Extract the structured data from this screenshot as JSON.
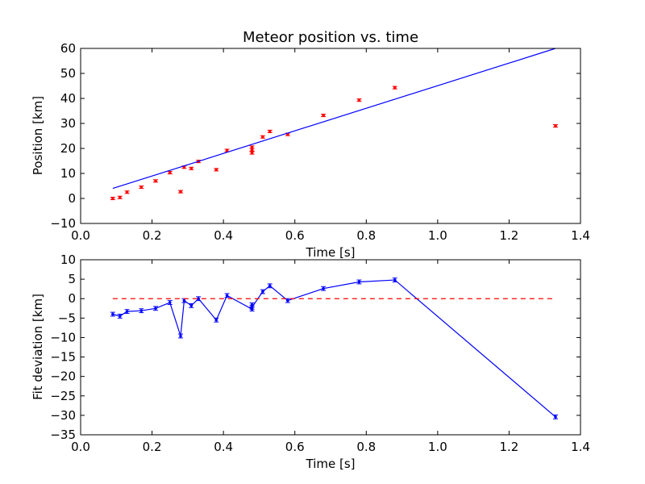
{
  "chart_data": [
    {
      "type": "scatter",
      "title": "Meteor position vs. time",
      "xlabel": "Time [s]",
      "ylabel": "Position [km]",
      "xlim": [
        0.0,
        1.4
      ],
      "ylim": [
        -10,
        60
      ],
      "xticks": [
        0.0,
        0.2,
        0.4,
        0.6,
        0.8,
        1.0,
        1.2,
        1.4
      ],
      "xtick_labels": [
        "0.0",
        "0.2",
        "0.4",
        "0.6",
        "0.8",
        "1.0",
        "1.2",
        "1.4"
      ],
      "yticks": [
        -10,
        0,
        10,
        20,
        30,
        40,
        50,
        60
      ],
      "ytick_labels": [
        "−10",
        "0",
        "10",
        "20",
        "30",
        "40",
        "50",
        "60"
      ],
      "grid": false,
      "series": [
        {
          "kind": "errorbar-points",
          "color": "#ff0000",
          "x": [
            0.09,
            0.11,
            0.13,
            0.17,
            0.21,
            0.25,
            0.28,
            0.29,
            0.31,
            0.33,
            0.38,
            0.41,
            0.48,
            0.48,
            0.48,
            0.51,
            0.53,
            0.58,
            0.68,
            0.78,
            0.88,
            1.33
          ],
          "y": [
            0.0,
            0.4,
            2.5,
            4.5,
            7.0,
            10.3,
            2.7,
            12.5,
            12.0,
            14.8,
            11.5,
            19.2,
            18.2,
            19.5,
            20.5,
            24.6,
            26.8,
            25.6,
            33.2,
            39.3,
            44.3,
            29.0
          ],
          "yerr": 0.5
        },
        {
          "kind": "line",
          "color": "#0000ff",
          "x": [
            0.09,
            1.33
          ],
          "y": [
            4.0,
            60.0
          ]
        }
      ]
    },
    {
      "type": "line",
      "xlabel": "Time [s]",
      "ylabel": "Fit deviation [km]",
      "xlim": [
        0.0,
        1.4
      ],
      "ylim": [
        -35,
        10
      ],
      "xticks": [
        0.0,
        0.2,
        0.4,
        0.6,
        0.8,
        1.0,
        1.2,
        1.4
      ],
      "xtick_labels": [
        "0.0",
        "0.2",
        "0.4",
        "0.6",
        "0.8",
        "1.0",
        "1.2",
        "1.4"
      ],
      "yticks": [
        -35,
        -30,
        -25,
        -20,
        -15,
        -10,
        -5,
        0,
        5,
        10
      ],
      "ytick_labels": [
        "−35",
        "−30",
        "−25",
        "−20",
        "−15",
        "−10",
        "−5",
        "0",
        "5",
        "10"
      ],
      "grid": false,
      "series": [
        {
          "kind": "errorbar-line",
          "color": "#0000ff",
          "x": [
            0.09,
            0.11,
            0.13,
            0.17,
            0.21,
            0.25,
            0.28,
            0.29,
            0.31,
            0.33,
            0.38,
            0.41,
            0.48,
            0.48,
            0.48,
            0.51,
            0.53,
            0.58,
            0.68,
            0.78,
            0.88,
            1.33
          ],
          "y": [
            -4.0,
            -4.5,
            -3.3,
            -3.1,
            -2.5,
            -1.0,
            -9.6,
            -0.5,
            -1.8,
            0.0,
            -5.5,
            0.8,
            -2.7,
            -1.6,
            -2.2,
            1.8,
            3.3,
            -0.5,
            2.6,
            4.3,
            4.8,
            -30.4
          ],
          "yerr": 0.5
        },
        {
          "kind": "dashed-line",
          "color": "#ff0000",
          "x": [
            0.09,
            1.33
          ],
          "y": [
            0,
            0
          ]
        }
      ]
    }
  ]
}
